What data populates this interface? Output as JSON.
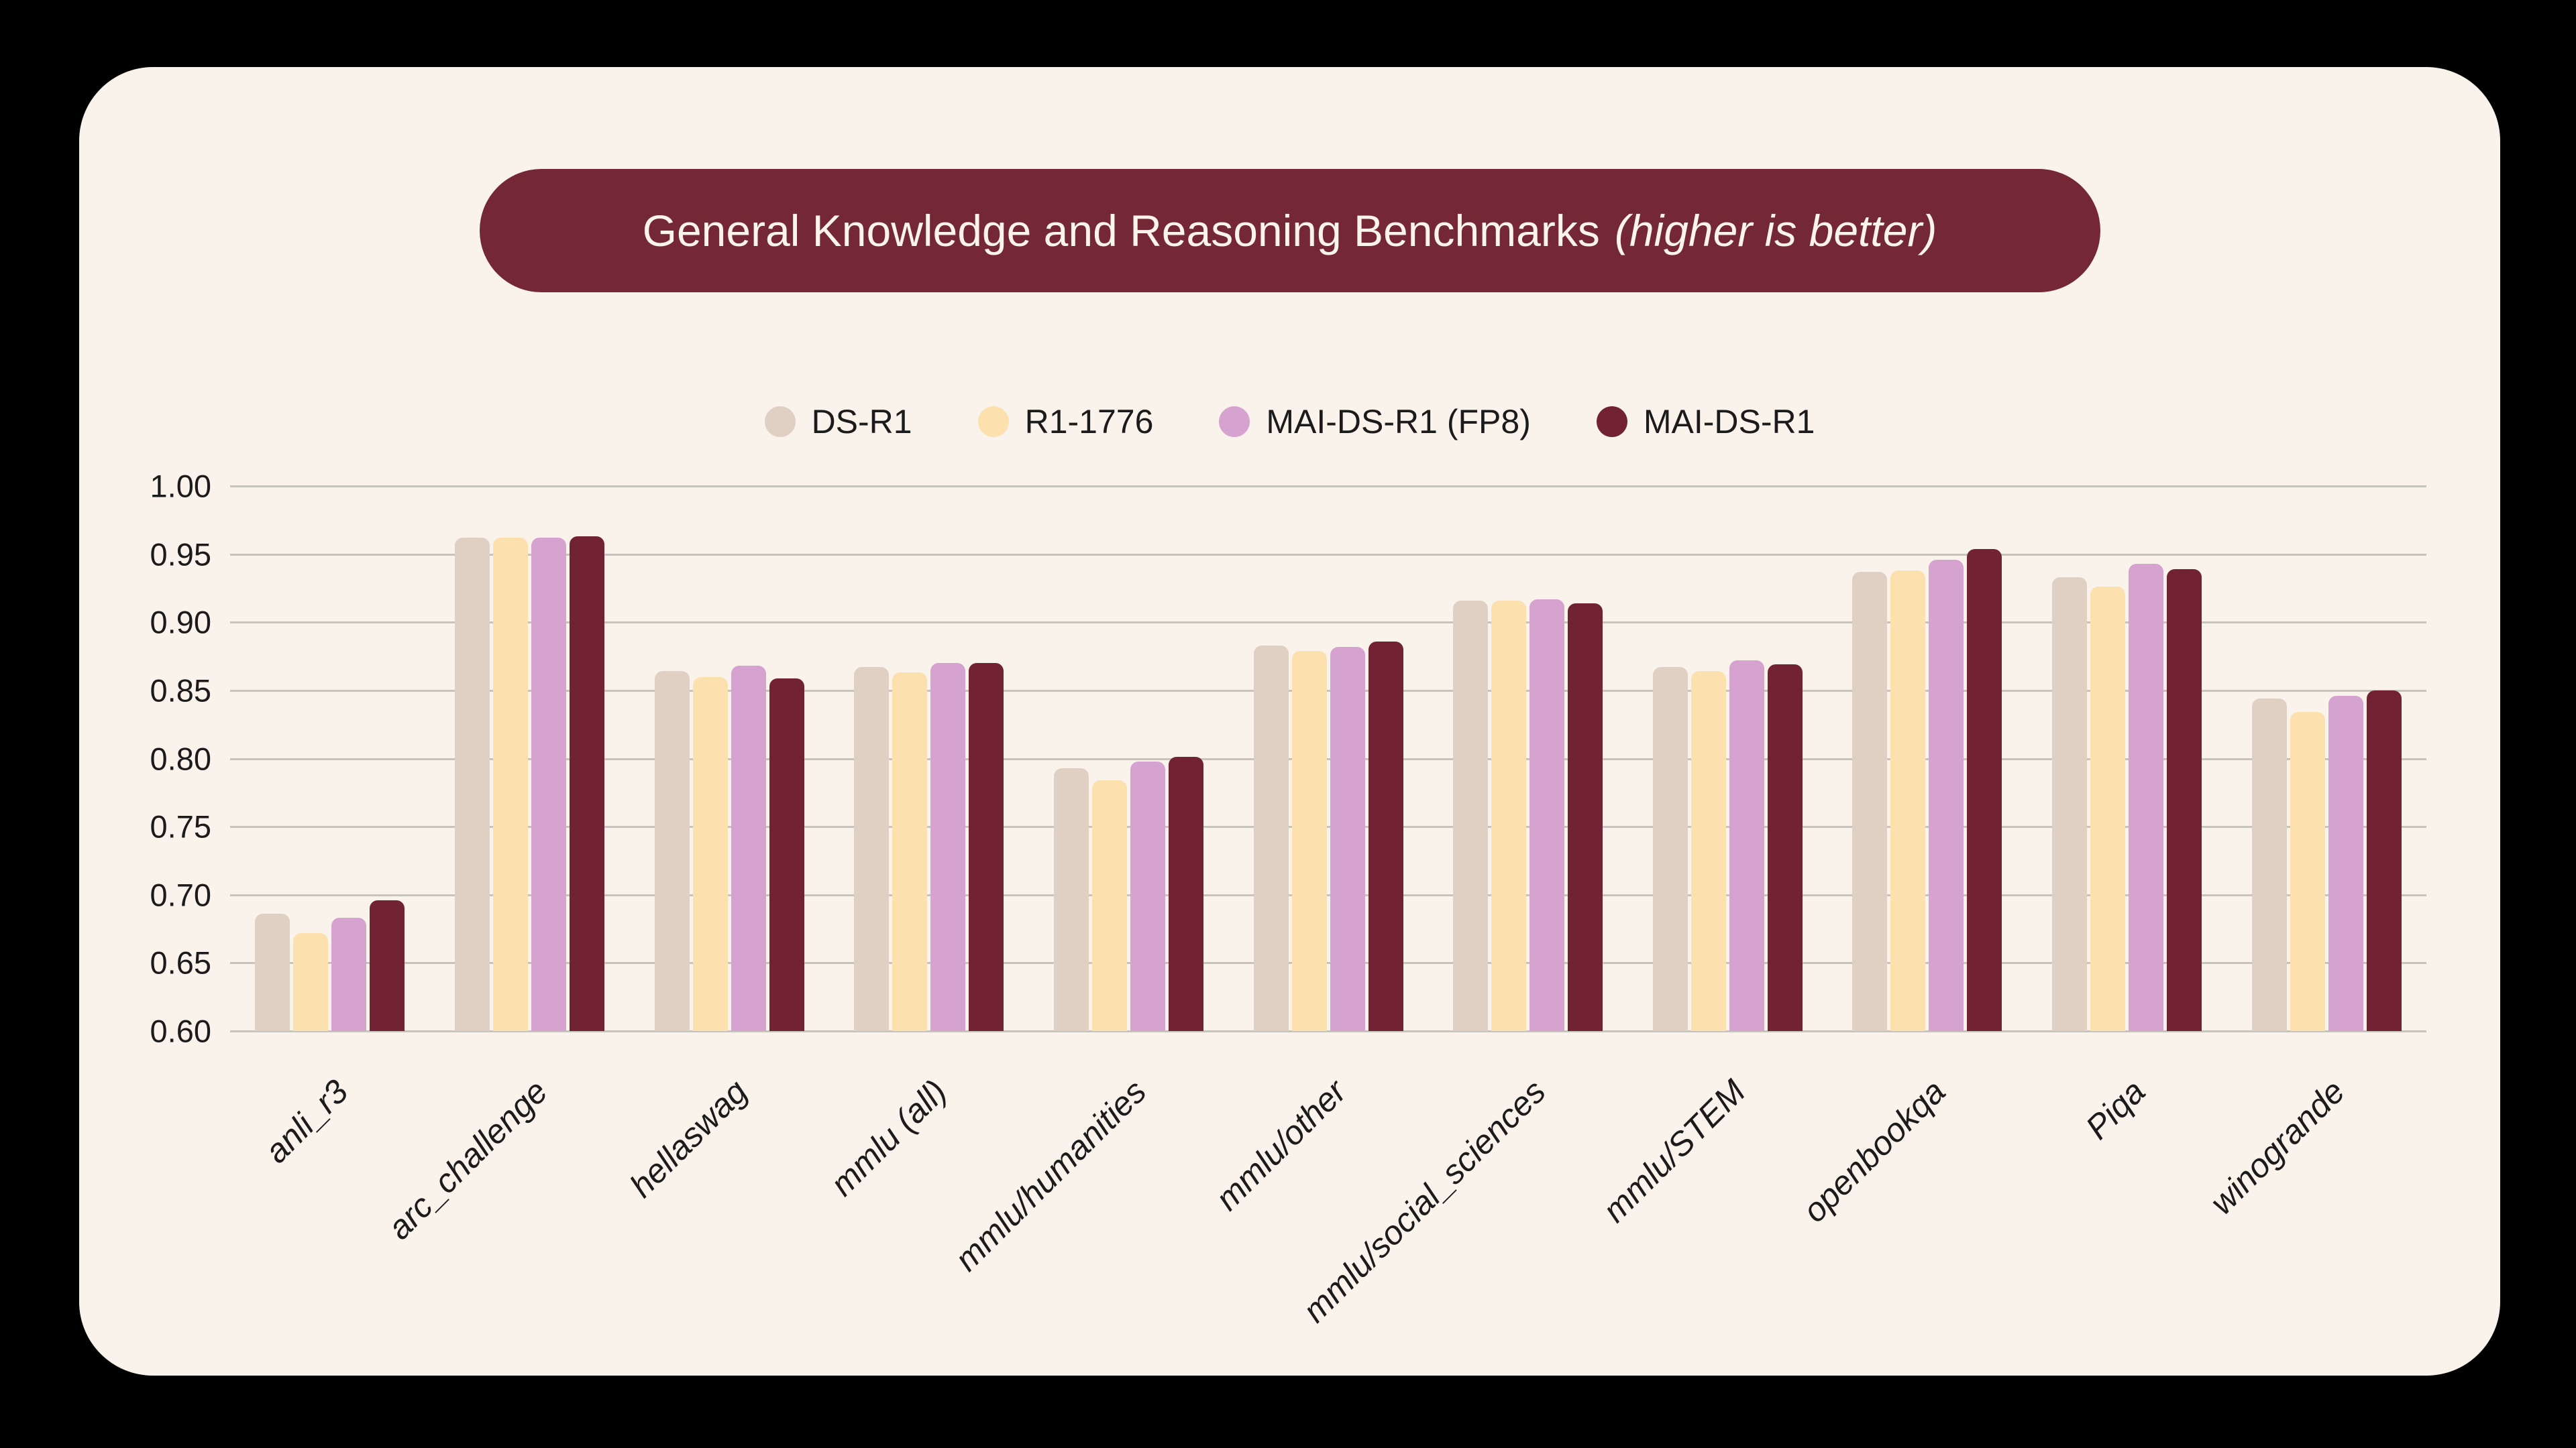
{
  "title": {
    "main": "General Knowledge and Reasoning Benchmarks",
    "note": "(higher is better)"
  },
  "colors": {
    "page_bg": "#000000",
    "card_bg": "#FAF3EB",
    "pill_bg": "#742836",
    "pill_text": "#FAF4EC",
    "grid": "#C7C3BD",
    "axis_text": "#1B1B1B"
  },
  "chart_data": {
    "type": "bar",
    "title": "General Knowledge and Reasoning Benchmarks (higher is better)",
    "categories": [
      "anli_r3",
      "arc_challenge",
      "hellaswag",
      "mmlu (all)",
      "mmlu/humanities",
      "mmlu/other",
      "mmlu/social_sciences",
      "mmlu/STEM",
      "openbookqa",
      "Piqa",
      "winogrande"
    ],
    "series": [
      {
        "name": "DS-R1",
        "color": "#E0CFC3",
        "values": [
          0.686,
          0.962,
          0.864,
          0.867,
          0.793,
          0.883,
          0.916,
          0.867,
          0.937,
          0.933,
          0.844
        ]
      },
      {
        "name": "R1-1776",
        "color": "#FCE1AF",
        "values": [
          0.672,
          0.962,
          0.86,
          0.863,
          0.784,
          0.879,
          0.916,
          0.864,
          0.938,
          0.926,
          0.834
        ]
      },
      {
        "name": "MAI-DS-R1 (FP8)",
        "color": "#D6A3D1",
        "values": [
          0.683,
          0.962,
          0.868,
          0.87,
          0.798,
          0.882,
          0.917,
          0.872,
          0.946,
          0.943,
          0.846
        ]
      },
      {
        "name": "MAI-DS-R1",
        "color": "#722333",
        "values": [
          0.696,
          0.963,
          0.859,
          0.87,
          0.801,
          0.886,
          0.914,
          0.869,
          0.954,
          0.939,
          0.85
        ]
      }
    ],
    "ylim": [
      0.6,
      1.0
    ],
    "ytick_step": 0.05,
    "yticks": [
      "1.00",
      "0.95",
      "0.90",
      "0.85",
      "0.80",
      "0.75",
      "0.70",
      "0.65",
      "0.60"
    ],
    "grid": "horizontal",
    "legend_position": "top"
  }
}
